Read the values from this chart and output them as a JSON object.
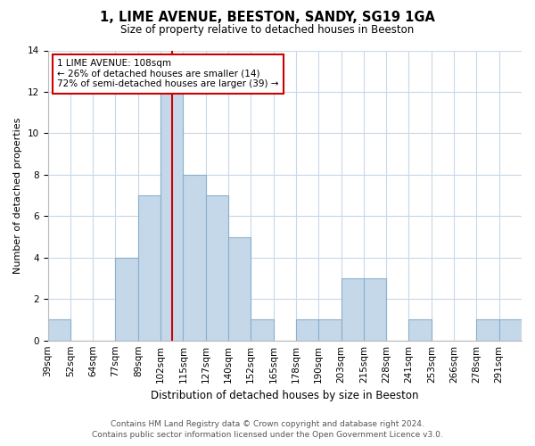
{
  "title": "1, LIME AVENUE, BEESTON, SANDY, SG19 1GA",
  "subtitle": "Size of property relative to detached houses in Beeston",
  "xlabel": "Distribution of detached houses by size in Beeston",
  "ylabel": "Number of detached properties",
  "bin_labels": [
    "39sqm",
    "52sqm",
    "64sqm",
    "77sqm",
    "89sqm",
    "102sqm",
    "115sqm",
    "127sqm",
    "140sqm",
    "152sqm",
    "165sqm",
    "178sqm",
    "190sqm",
    "203sqm",
    "215sqm",
    "228sqm",
    "241sqm",
    "253sqm",
    "266sqm",
    "278sqm",
    "291sqm"
  ],
  "counts": [
    1,
    0,
    0,
    4,
    7,
    12,
    8,
    7,
    5,
    1,
    0,
    1,
    1,
    3,
    3,
    0,
    1,
    0,
    0,
    1,
    1
  ],
  "bar_color": "#c5d8ea",
  "bar_edge_color": "#8ab0cc",
  "highlight_bin_index": 5.5,
  "highlight_line_color": "#cc0000",
  "annotation_text": "1 LIME AVENUE: 108sqm\n← 26% of detached houses are smaller (14)\n72% of semi-detached houses are larger (39) →",
  "annotation_box_color": "#ffffff",
  "annotation_box_edge_color": "#cc0000",
  "ylim": [
    0,
    14
  ],
  "yticks": [
    0,
    2,
    4,
    6,
    8,
    10,
    12,
    14
  ],
  "footer_line1": "Contains HM Land Registry data © Crown copyright and database right 2024.",
  "footer_line2": "Contains public sector information licensed under the Open Government Licence v3.0.",
  "background_color": "#ffffff",
  "grid_color": "#c8d8e8",
  "title_fontsize": 10.5,
  "subtitle_fontsize": 8.5,
  "xlabel_fontsize": 8.5,
  "ylabel_fontsize": 8,
  "tick_fontsize": 7.5,
  "annotation_fontsize": 7.5,
  "footer_fontsize": 6.5
}
